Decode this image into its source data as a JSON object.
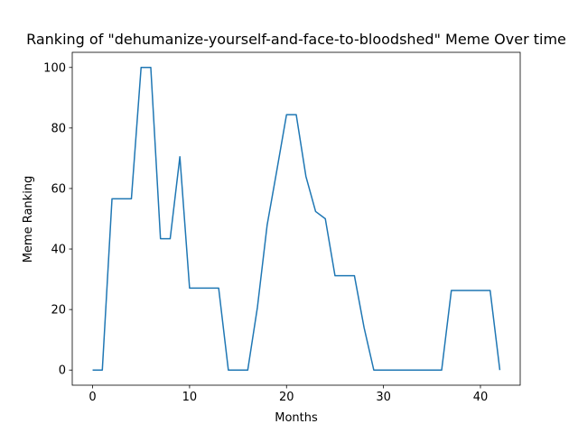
{
  "chart_data": {
    "type": "line",
    "title": "Ranking of \"dehumanize-yourself-and-face-to-bloodshed\" Meme Over time",
    "xlabel": "Months",
    "ylabel": "Meme Ranking",
    "xlim": [
      -2.1,
      44.1
    ],
    "ylim": [
      -5,
      105
    ],
    "xticks": [
      0,
      10,
      20,
      30,
      40
    ],
    "yticks": [
      0,
      20,
      40,
      60,
      80,
      100
    ],
    "grid": false,
    "series": [
      {
        "color": "#1f77b4",
        "x": [
          0,
          1,
          2,
          3,
          4,
          5,
          6,
          7,
          8,
          9,
          10,
          11,
          12,
          13,
          14,
          15,
          16,
          17,
          18,
          19,
          20,
          21,
          22,
          23,
          24,
          25,
          26,
          27,
          28,
          29,
          30,
          31,
          32,
          33,
          34,
          35,
          36,
          37,
          38,
          39,
          40,
          41,
          42
        ],
        "y": [
          0,
          0,
          56.6,
          56.6,
          56.6,
          100,
          100,
          43.4,
          43.4,
          70.5,
          27.1,
          27.1,
          27.1,
          27.1,
          0,
          0,
          0,
          20.8,
          47.9,
          66,
          84.4,
          84.4,
          64,
          52.4,
          50,
          31.2,
          31.2,
          31.2,
          14,
          0,
          0,
          0,
          0,
          0,
          0,
          0,
          0,
          26.3,
          26.3,
          26.3,
          26.3,
          26.3,
          0
        ]
      }
    ]
  }
}
